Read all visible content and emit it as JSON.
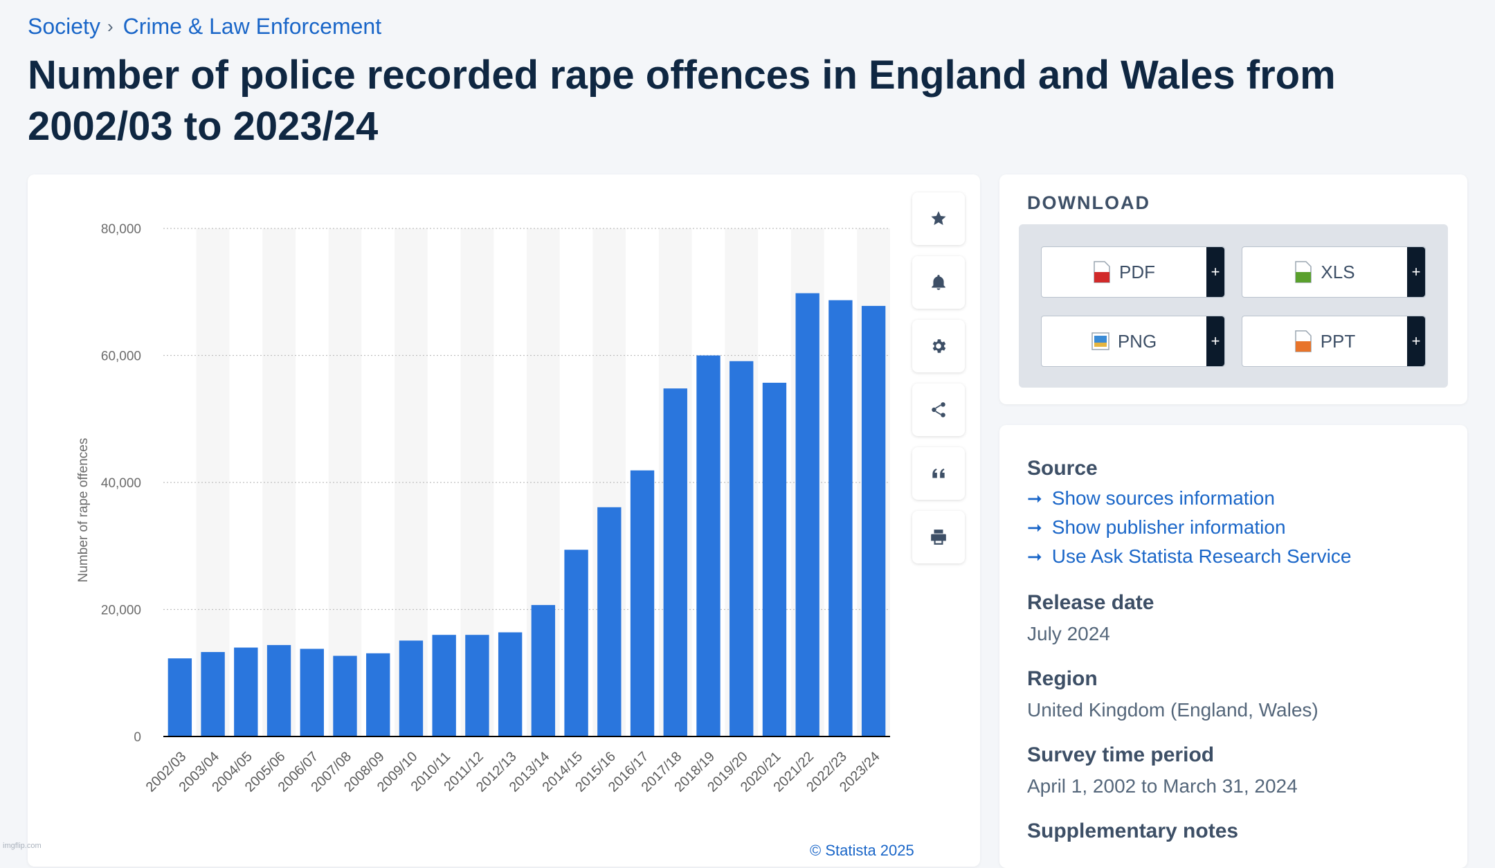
{
  "breadcrumb": {
    "items": [
      "Society",
      "Crime & Law Enforcement"
    ],
    "separator": "›"
  },
  "title": "Number of police recorded rape offences in England and Wales from 2002/03 to 2023/24",
  "chart_data": {
    "type": "bar",
    "title": "",
    "xlabel": "",
    "ylabel": "Number of rape offences",
    "ylim": [
      0,
      80000
    ],
    "yticks": [
      0,
      20000,
      40000,
      60000,
      80000
    ],
    "ytick_labels": [
      "0",
      "20,000",
      "40,000",
      "60,000",
      "80,000"
    ],
    "grid": true,
    "bar_color": "#2a76dd",
    "categories": [
      "2002/03",
      "2003/04",
      "2004/05",
      "2005/06",
      "2006/07",
      "2007/08",
      "2008/09",
      "2009/10",
      "2010/11",
      "2011/12",
      "2012/13",
      "2013/14",
      "2014/15",
      "2015/16",
      "2016/17",
      "2017/18",
      "2018/19",
      "2019/20",
      "2020/21",
      "2021/22",
      "2022/23",
      "2023/24"
    ],
    "values": [
      12300,
      13300,
      14000,
      14400,
      13800,
      12700,
      13100,
      15100,
      16000,
      16000,
      16400,
      20700,
      29400,
      36100,
      41900,
      54800,
      60000,
      59100,
      55700,
      69800,
      68700,
      67800
    ],
    "credit": "© Statista 2025"
  },
  "tools": [
    {
      "name": "favorite-button",
      "icon": "star-icon"
    },
    {
      "name": "notification-button",
      "icon": "bell-icon"
    },
    {
      "name": "settings-button",
      "icon": "gear-icon"
    },
    {
      "name": "share-button",
      "icon": "share-icon"
    },
    {
      "name": "cite-button",
      "icon": "quote-icon"
    },
    {
      "name": "print-button",
      "icon": "printer-icon"
    }
  ],
  "download": {
    "title": "DOWNLOAD",
    "buttons": [
      {
        "label": "PDF",
        "plus": "+",
        "icon": "pdf-file-icon",
        "color": "#d12a2a"
      },
      {
        "label": "XLS",
        "plus": "+",
        "icon": "xls-file-icon",
        "color": "#5aa02c"
      },
      {
        "label": "PNG",
        "plus": "+",
        "icon": "png-file-icon",
        "color": "#3a8bd6"
      },
      {
        "label": "PPT",
        "plus": "+",
        "icon": "ppt-file-icon",
        "color": "#e8742a"
      }
    ]
  },
  "info": {
    "source_heading": "Source",
    "links": [
      "Show sources information",
      "Show publisher information",
      "Use Ask Statista Research Service"
    ],
    "release_heading": "Release date",
    "release_value": "July 2024",
    "region_heading": "Region",
    "region_value": "United Kingdom (England, Wales)",
    "period_heading": "Survey time period",
    "period_value": "April 1, 2002 to March 31, 2024",
    "notes_heading": "Supplementary notes"
  },
  "watermark": "imgflip.com",
  "colors": {
    "accent": "#1a66c8",
    "bar": "#2a76dd",
    "title": "#0f2742"
  }
}
